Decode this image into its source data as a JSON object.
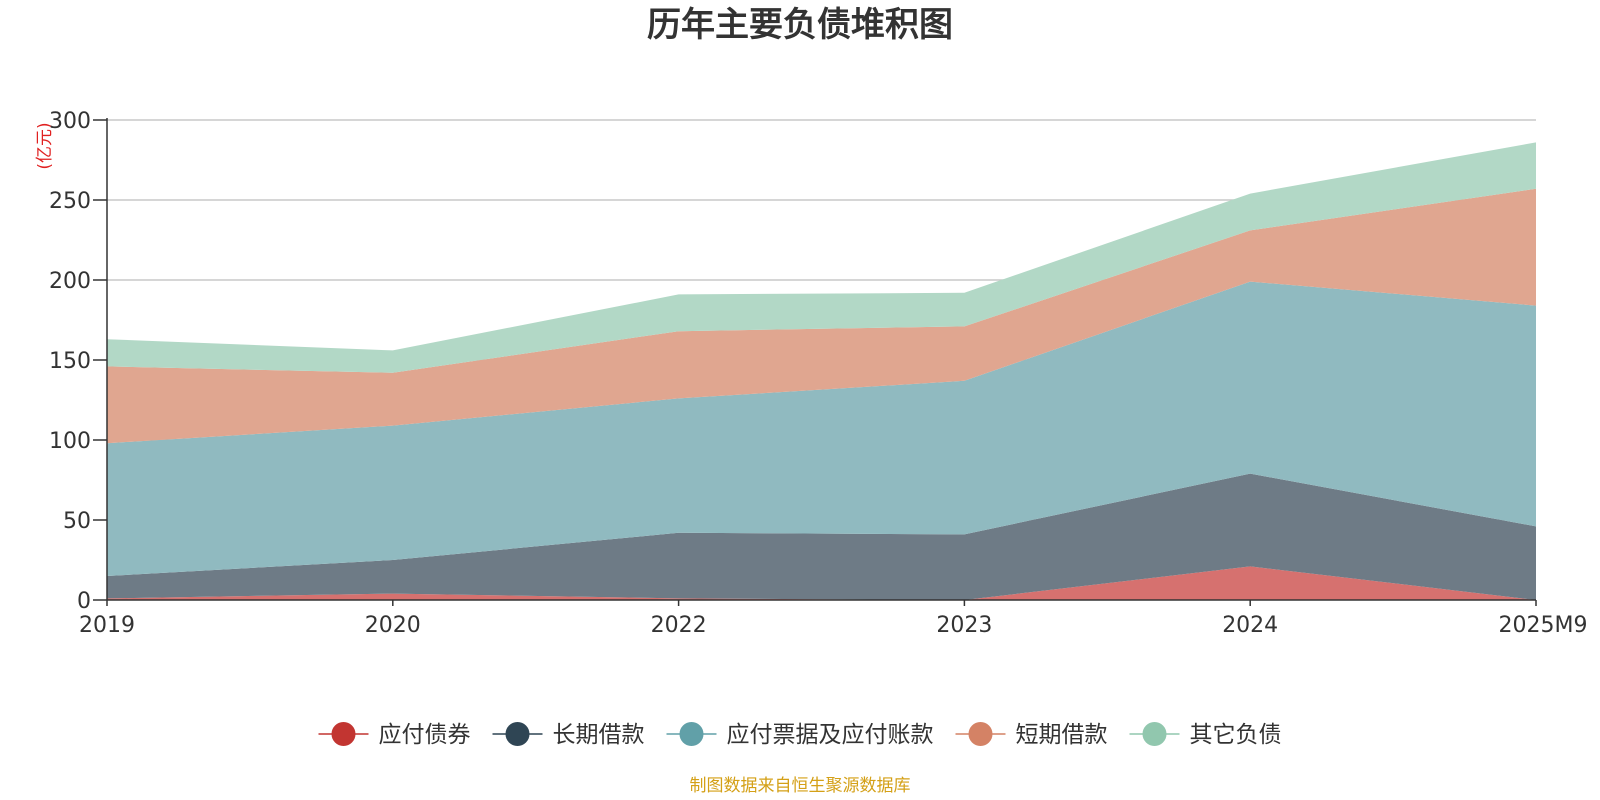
{
  "chart_data": {
    "type": "area",
    "stacked": true,
    "title": "历年主要负债堆积图",
    "unit_label": "(亿元)",
    "categories": [
      "2019",
      "2020",
      "2022",
      "2023",
      "2024",
      "2025M9"
    ],
    "ylim": [
      0,
      300
    ],
    "yticks": [
      0,
      50,
      100,
      150,
      200,
      250,
      300
    ],
    "grid": true,
    "legend_position": "bottom-center",
    "series": [
      {
        "name": "应付债券",
        "color": "#c23531",
        "fill": "#d6716f",
        "values": [
          1,
          4,
          1,
          0,
          21,
          0
        ]
      },
      {
        "name": "长期借款",
        "color": "#2f4554",
        "fill": "#6e7b86",
        "values": [
          14,
          21,
          41,
          41,
          58,
          46
        ]
      },
      {
        "name": "应付票据及应付账款",
        "color": "#61a0a8",
        "fill": "#90bac0",
        "values": [
          83,
          84,
          84,
          96,
          120,
          138
        ]
      },
      {
        "name": "短期借款",
        "color": "#d48265",
        "fill": "#e0a690",
        "values": [
          48,
          33,
          42,
          34,
          32,
          73
        ]
      },
      {
        "name": "其它负债",
        "color": "#91c7ae",
        "fill": "#b2d8c6",
        "values": [
          17,
          14,
          23,
          21,
          23,
          29
        ]
      }
    ]
  },
  "source_note": "制图数据来自恒生聚源数据库"
}
